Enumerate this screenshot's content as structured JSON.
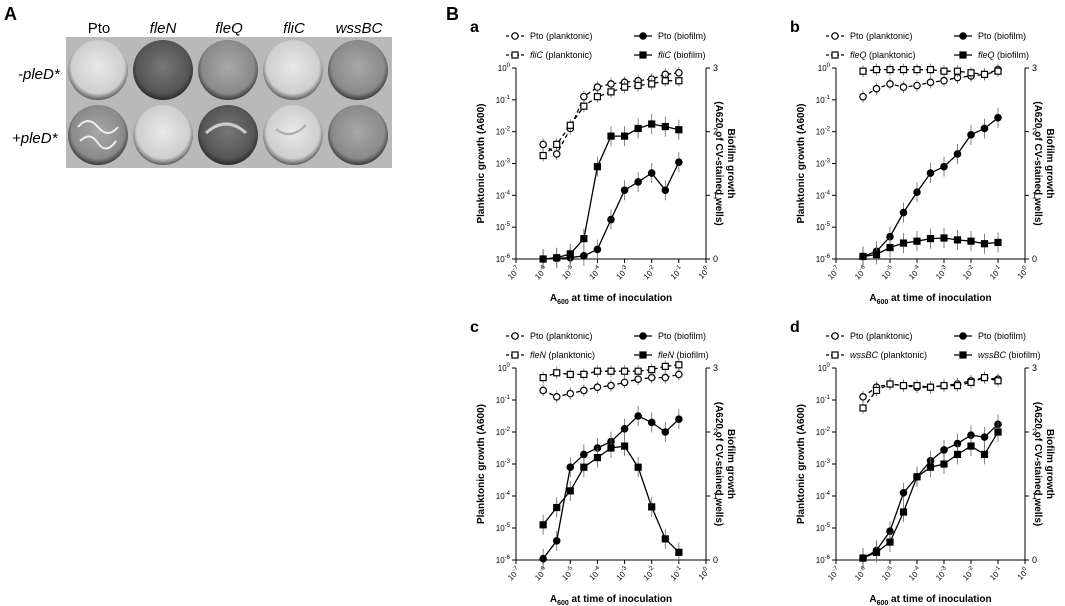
{
  "panelA": {
    "letter": "A",
    "strains": [
      "Pto",
      "fleN",
      "fleQ",
      "fliC",
      "wssBC"
    ],
    "rows": [
      "-pleD*",
      "+pleD*"
    ]
  },
  "panelB": {
    "letter": "B"
  },
  "chart_data": [
    {
      "type": "line",
      "panel": "a",
      "xlabel": "A600 at time of inoculation",
      "ylabel_left": "Planktonic growth (A600)",
      "ylabel_right": "Biofilm growth (A620 of CV-stained wells)",
      "x_log_range": [
        -7,
        0
      ],
      "y_left_log_range": [
        -6,
        0
      ],
      "y_right_range": [
        0,
        3
      ],
      "legend": [
        "Pto (planktonic)",
        "Pto (biofilm)",
        "fliC (planktonic)",
        "fliC (biofilm)"
      ],
      "x": [
        -6,
        -5.5,
        -5,
        -4.5,
        -4,
        -3.5,
        -3,
        -2.5,
        -2,
        -1.5,
        -1
      ],
      "series": [
        {
          "name": "Pto (planktonic)",
          "axis": "left",
          "values": [
            -2.4,
            -2.7,
            -1.9,
            -0.9,
            -0.6,
            -0.5,
            -0.45,
            -0.4,
            -0.35,
            -0.2,
            -0.15
          ]
        },
        {
          "name": "fliC (planktonic)",
          "axis": "left",
          "values": [
            -2.75,
            -2.4,
            -1.8,
            -1.2,
            -0.9,
            -0.75,
            -0.6,
            -0.55,
            -0.5,
            -0.4,
            -0.4
          ]
        },
        {
          "name": "Pto (biofilm)",
          "axis": "right",
          "values": [
            0,
            0.01,
            0.02,
            0.05,
            0.15,
            0.62,
            1.08,
            1.21,
            1.35,
            1.08,
            1.52
          ]
        },
        {
          "name": "fliC (biofilm)",
          "axis": "right",
          "values": [
            0,
            0.02,
            0.08,
            0.32,
            1.45,
            1.93,
            1.93,
            2.05,
            2.12,
            2.08,
            2.03
          ]
        }
      ]
    },
    {
      "type": "line",
      "panel": "b",
      "xlabel": "A600 at time of inoculation",
      "ylabel_left": "Planktonic growth (A600)",
      "ylabel_right": "Biofilm growth (A620 of CV-stained wells)",
      "x_log_range": [
        -7,
        0
      ],
      "y_left_log_range": [
        -6,
        0
      ],
      "y_right_range": [
        0,
        3
      ],
      "legend": [
        "Pto (planktonic)",
        "Pto (biofilm)",
        "fleQ (planktonic)",
        "fleQ (biofilm)"
      ],
      "x": [
        -6,
        -5.5,
        -5,
        -4.5,
        -4,
        -3.5,
        -3,
        -2.5,
        -2,
        -1.5,
        -1
      ],
      "series": [
        {
          "name": "Pto (planktonic)",
          "axis": "left",
          "values": [
            -0.9,
            -0.65,
            -0.5,
            -0.6,
            -0.55,
            -0.45,
            -0.4,
            -0.3,
            -0.25,
            -0.2,
            -0.05
          ]
        },
        {
          "name": "fleQ (planktonic)",
          "axis": "left",
          "values": [
            -0.1,
            -0.05,
            -0.05,
            -0.05,
            -0.05,
            -0.05,
            -0.1,
            -0.1,
            -0.15,
            -0.2,
            -0.1
          ]
        },
        {
          "name": "Pto (biofilm)",
          "axis": "right",
          "values": [
            0.04,
            0.12,
            0.35,
            0.73,
            1.05,
            1.35,
            1.45,
            1.65,
            1.95,
            2.05,
            2.22
          ]
        },
        {
          "name": "fleQ (biofilm)",
          "axis": "right",
          "values": [
            0.04,
            0.07,
            0.18,
            0.25,
            0.28,
            0.32,
            0.33,
            0.3,
            0.28,
            0.24,
            0.26
          ]
        }
      ]
    },
    {
      "type": "line",
      "panel": "c",
      "xlabel": "A600 at time of inoculation",
      "ylabel_left": "Planktonic growth (A600)",
      "ylabel_right": "Biofilm growth (A620 of CV-stained wells)",
      "x_log_range": [
        -7,
        0
      ],
      "y_left_log_range": [
        -6,
        0
      ],
      "y_right_range": [
        0,
        3
      ],
      "legend": [
        "Pto (planktonic)",
        "Pto (biofilm)",
        "fleN (planktonic)",
        "fleN (biofilm)"
      ],
      "x": [
        -6,
        -5.5,
        -5,
        -4.5,
        -4,
        -3.5,
        -3,
        -2.5,
        -2,
        -1.5,
        -1
      ],
      "series": [
        {
          "name": "Pto (planktonic)",
          "axis": "left",
          "values": [
            -0.7,
            -0.9,
            -0.8,
            -0.7,
            -0.6,
            -0.55,
            -0.45,
            -0.35,
            -0.3,
            -0.3,
            -0.2
          ]
        },
        {
          "name": "fleN (planktonic)",
          "axis": "left",
          "values": [
            -0.3,
            -0.15,
            -0.2,
            -0.2,
            -0.1,
            -0.1,
            -0.1,
            -0.1,
            -0.05,
            0.05,
            0.1
          ]
        },
        {
          "name": "Pto (biofilm)",
          "axis": "right",
          "values": [
            0.02,
            0.3,
            1.45,
            1.65,
            1.75,
            1.85,
            2.05,
            2.25,
            2.15,
            2.0,
            2.2
          ]
        },
        {
          "name": "fleN (biofilm)",
          "axis": "right",
          "values": [
            0.55,
            0.82,
            1.08,
            1.45,
            1.6,
            1.75,
            1.78,
            1.45,
            0.83,
            0.33,
            0.12
          ]
        }
      ]
    },
    {
      "type": "line",
      "panel": "d",
      "xlabel": "A600 at time of inoculation",
      "ylabel_left": "Planktonic growth (A600)",
      "ylabel_right": "Biofilm growth (A620 of CV-stained wells)",
      "x_log_range": [
        -7,
        0
      ],
      "y_left_log_range": [
        -6,
        0
      ],
      "y_right_range": [
        0,
        3
      ],
      "legend": [
        "Pto (planktonic)",
        "Pto (biofilm)",
        "wssBC (planktonic)",
        "wssBC (biofilm)"
      ],
      "x": [
        -6,
        -5.5,
        -5,
        -4.5,
        -4,
        -3.5,
        -3,
        -2.5,
        -2,
        -1.5,
        -1
      ],
      "series": [
        {
          "name": "Pto (planktonic)",
          "axis": "left",
          "values": [
            -0.9,
            -0.6,
            -0.5,
            -0.55,
            -0.6,
            -0.6,
            -0.55,
            -0.5,
            -0.4,
            -0.3,
            -0.35
          ]
        },
        {
          "name": "wssBC (planktonic)",
          "axis": "left",
          "values": [
            -1.25,
            -0.7,
            -0.5,
            -0.55,
            -0.55,
            -0.6,
            -0.55,
            -0.55,
            -0.45,
            -0.3,
            -0.4
          ]
        },
        {
          "name": "Pto (biofilm)",
          "axis": "right",
          "values": [
            0.03,
            0.15,
            0.45,
            1.05,
            1.3,
            1.55,
            1.72,
            1.82,
            1.95,
            1.92,
            2.12
          ]
        },
        {
          "name": "wssBC (biofilm)",
          "axis": "right",
          "values": [
            0.03,
            0.12,
            0.28,
            0.75,
            1.3,
            1.45,
            1.5,
            1.65,
            1.78,
            1.65,
            2.0
          ]
        }
      ]
    }
  ]
}
